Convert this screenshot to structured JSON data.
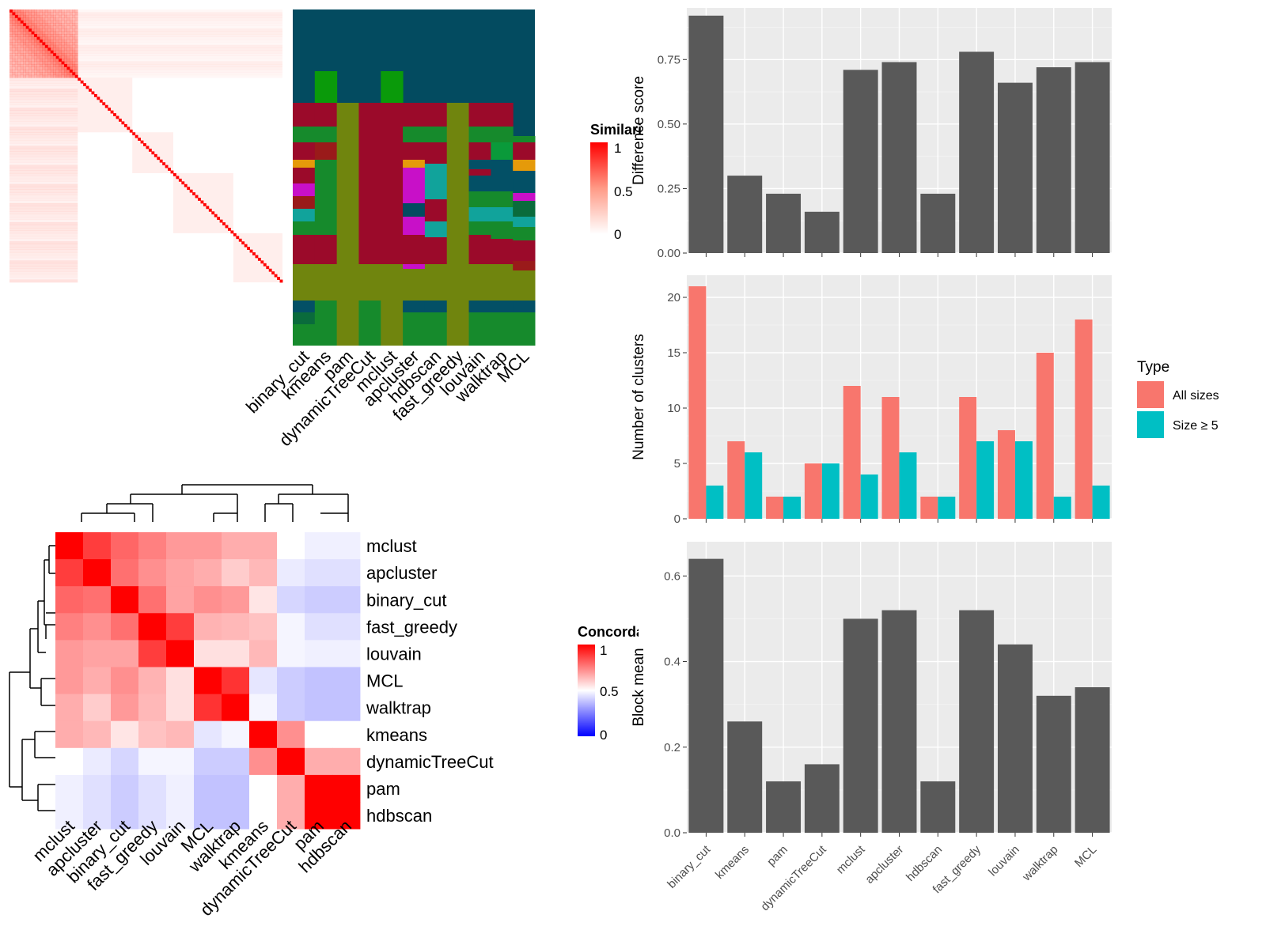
{
  "colors": {
    "heat_red": "#ff0000",
    "heat_blue": "#0000ff",
    "panel_bg": "#ebebeb",
    "bar_gray": "#595959",
    "all_sizes": "#f8766d",
    "size_ge5": "#00bfc4",
    "cluster_bg": "#034b60"
  },
  "methods": [
    "binary_cut",
    "kmeans",
    "pam",
    "dynamicTreeCut",
    "mclust",
    "apcluster",
    "hdbscan",
    "fast_greedy",
    "louvain",
    "walktrap",
    "MCL"
  ],
  "similarity_legend": {
    "title": "Similarity",
    "ticks": [
      "1",
      "0.5",
      "0"
    ]
  },
  "concordance_legend": {
    "title": "Concordance",
    "ticks": [
      "1",
      "0.5",
      "0"
    ]
  },
  "concordance": {
    "order": [
      "mclust",
      "apcluster",
      "binary_cut",
      "fast_greedy",
      "louvain",
      "MCL",
      "walktrap",
      "kmeans",
      "dynamicTreeCut",
      "pam",
      "hdbscan"
    ],
    "matrix": [
      [
        1.0,
        0.88,
        0.8,
        0.75,
        0.7,
        0.7,
        0.66,
        0.66,
        0.5,
        0.47,
        0.47
      ],
      [
        0.88,
        1.0,
        0.78,
        0.72,
        0.68,
        0.66,
        0.6,
        0.64,
        0.46,
        0.44,
        0.44
      ],
      [
        0.8,
        0.78,
        1.0,
        0.78,
        0.68,
        0.72,
        0.7,
        0.55,
        0.42,
        0.4,
        0.4
      ],
      [
        0.75,
        0.72,
        0.78,
        1.0,
        0.88,
        0.65,
        0.64,
        0.62,
        0.48,
        0.44,
        0.44
      ],
      [
        0.7,
        0.68,
        0.68,
        0.88,
        1.0,
        0.56,
        0.56,
        0.64,
        0.48,
        0.47,
        0.47
      ],
      [
        0.7,
        0.66,
        0.72,
        0.65,
        0.56,
        1.0,
        0.9,
        0.45,
        0.4,
        0.38,
        0.38
      ],
      [
        0.66,
        0.6,
        0.7,
        0.64,
        0.56,
        0.9,
        1.0,
        0.48,
        0.4,
        0.38,
        0.38
      ],
      [
        0.66,
        0.64,
        0.55,
        0.62,
        0.64,
        0.45,
        0.48,
        1.0,
        0.72,
        0.5,
        0.5
      ],
      [
        0.5,
        0.46,
        0.42,
        0.48,
        0.48,
        0.4,
        0.4,
        0.72,
        1.0,
        0.66,
        0.66
      ],
      [
        0.47,
        0.44,
        0.4,
        0.44,
        0.47,
        0.38,
        0.38,
        0.5,
        0.66,
        1.0,
        1.0
      ],
      [
        0.47,
        0.44,
        0.4,
        0.44,
        0.47,
        0.38,
        0.38,
        0.5,
        0.66,
        1.0,
        1.0
      ]
    ]
  },
  "chart_data": [
    {
      "type": "bar",
      "categories": [
        "binary_cut",
        "kmeans",
        "pam",
        "dynamicTreeCut",
        "mclust",
        "apcluster",
        "hdbscan",
        "fast_greedy",
        "louvain",
        "walktrap",
        "MCL"
      ],
      "values": [
        0.92,
        0.3,
        0.23,
        0.16,
        0.71,
        0.74,
        0.23,
        0.78,
        0.66,
        0.72,
        0.74
      ],
      "ylabel": "Difference score",
      "ylim": [
        0,
        0.95
      ],
      "yticks": [
        0.0,
        0.25,
        0.5,
        0.75
      ],
      "ytick_labels": [
        "0.00",
        "0.25",
        "0.50",
        "0.75"
      ],
      "grid": true
    },
    {
      "type": "bar",
      "categories": [
        "binary_cut",
        "kmeans",
        "pam",
        "dynamicTreeCut",
        "mclust",
        "apcluster",
        "hdbscan",
        "fast_greedy",
        "louvain",
        "walktrap",
        "MCL"
      ],
      "series": [
        {
          "name": "All sizes",
          "values": [
            21,
            7,
            2,
            5,
            12,
            11,
            2,
            11,
            8,
            15,
            18
          ]
        },
        {
          "name": "Size ≥ 5",
          "values": [
            3,
            6,
            2,
            5,
            4,
            6,
            2,
            7,
            7,
            2,
            3
          ]
        }
      ],
      "ylabel": "Number of clusters",
      "ylim": [
        0,
        22
      ],
      "yticks": [
        0,
        5,
        10,
        15,
        20
      ],
      "ytick_labels": [
        "0",
        "5",
        "10",
        "15",
        "20"
      ],
      "legend_title": "Type",
      "legend_position": "right",
      "grid": true
    },
    {
      "type": "bar",
      "categories": [
        "binary_cut",
        "kmeans",
        "pam",
        "dynamicTreeCut",
        "mclust",
        "apcluster",
        "hdbscan",
        "fast_greedy",
        "louvain",
        "walktrap",
        "MCL"
      ],
      "values": [
        0.64,
        0.26,
        0.12,
        0.16,
        0.5,
        0.52,
        0.12,
        0.52,
        0.44,
        0.32,
        0.34
      ],
      "ylabel": "Block mean",
      "ylim": [
        0,
        0.68
      ],
      "yticks": [
        0.0,
        0.2,
        0.4,
        0.6
      ],
      "ytick_labels": [
        "0.0",
        "0.2",
        "0.4",
        "0.6"
      ],
      "grid": true
    }
  ]
}
